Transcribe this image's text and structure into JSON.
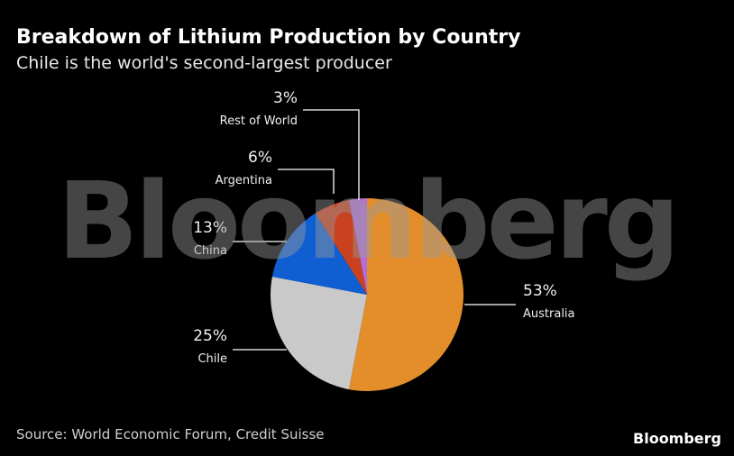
{
  "chart_data": {
    "type": "pie",
    "title": "Breakdown of Lithium Production by Country",
    "subtitle": "Chile is the world's second-largest producer",
    "categories": [
      "Australia",
      "Chile",
      "China",
      "Argentina",
      "Rest of World"
    ],
    "values": [
      53,
      25,
      13,
      6,
      3
    ],
    "value_labels": [
      "53%",
      "25%",
      "13%",
      "6%",
      "3%"
    ],
    "colors": [
      "#e38e2a",
      "#c9c9c9",
      "#0f5fd3",
      "#c9411f",
      "#b46fd6"
    ],
    "watermark": "Bloomberg",
    "source": "Source: World Economic Forum, Credit Suisse",
    "brand": "Bloomberg"
  }
}
